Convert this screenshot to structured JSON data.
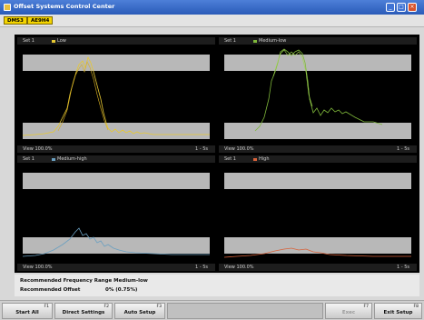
{
  "window": {
    "title": "Offset Systems Control Center"
  },
  "toolbar": {
    "tags": [
      "DMS3",
      "AE9H4"
    ]
  },
  "colors": {
    "low": "#e6c832",
    "medium_low": "#7fb83a",
    "medium_high": "#6a9fc0",
    "high": "#d8623a"
  },
  "panels": [
    {
      "set": "Set 1",
      "label": "Low",
      "color": "#e6c832",
      "view": "View 100.0%",
      "time": "1 - 5s"
    },
    {
      "set": "Set 1",
      "label": "Medium-low",
      "color": "#7fb83a",
      "view": "View 100.0%",
      "time": "1 - 5s"
    },
    {
      "set": "Set 1",
      "label": "Medium-high",
      "color": "#6a9fc0",
      "view": "View 100.0%",
      "time": "1 - 5s"
    },
    {
      "set": "Set 1",
      "label": "High",
      "color": "#d8623a",
      "view": "View 100.0%",
      "time": "1 - 5s"
    }
  ],
  "info": {
    "recommended_range": "Recommended Frequency Range Medium-low",
    "offset_label": "Recommended Offset",
    "offset_value": "0% (0.75%)"
  },
  "fkeys": [
    {
      "fn": "F1",
      "label": "Start All"
    },
    {
      "fn": "F2",
      "label": "Direct Settings"
    },
    {
      "fn": "F3",
      "label": "Auto Setup"
    },
    {
      "fn": "",
      "label": ""
    },
    {
      "fn": "F7",
      "label": "Exec"
    },
    {
      "fn": "F8",
      "label": "Exit Setup"
    }
  ]
}
